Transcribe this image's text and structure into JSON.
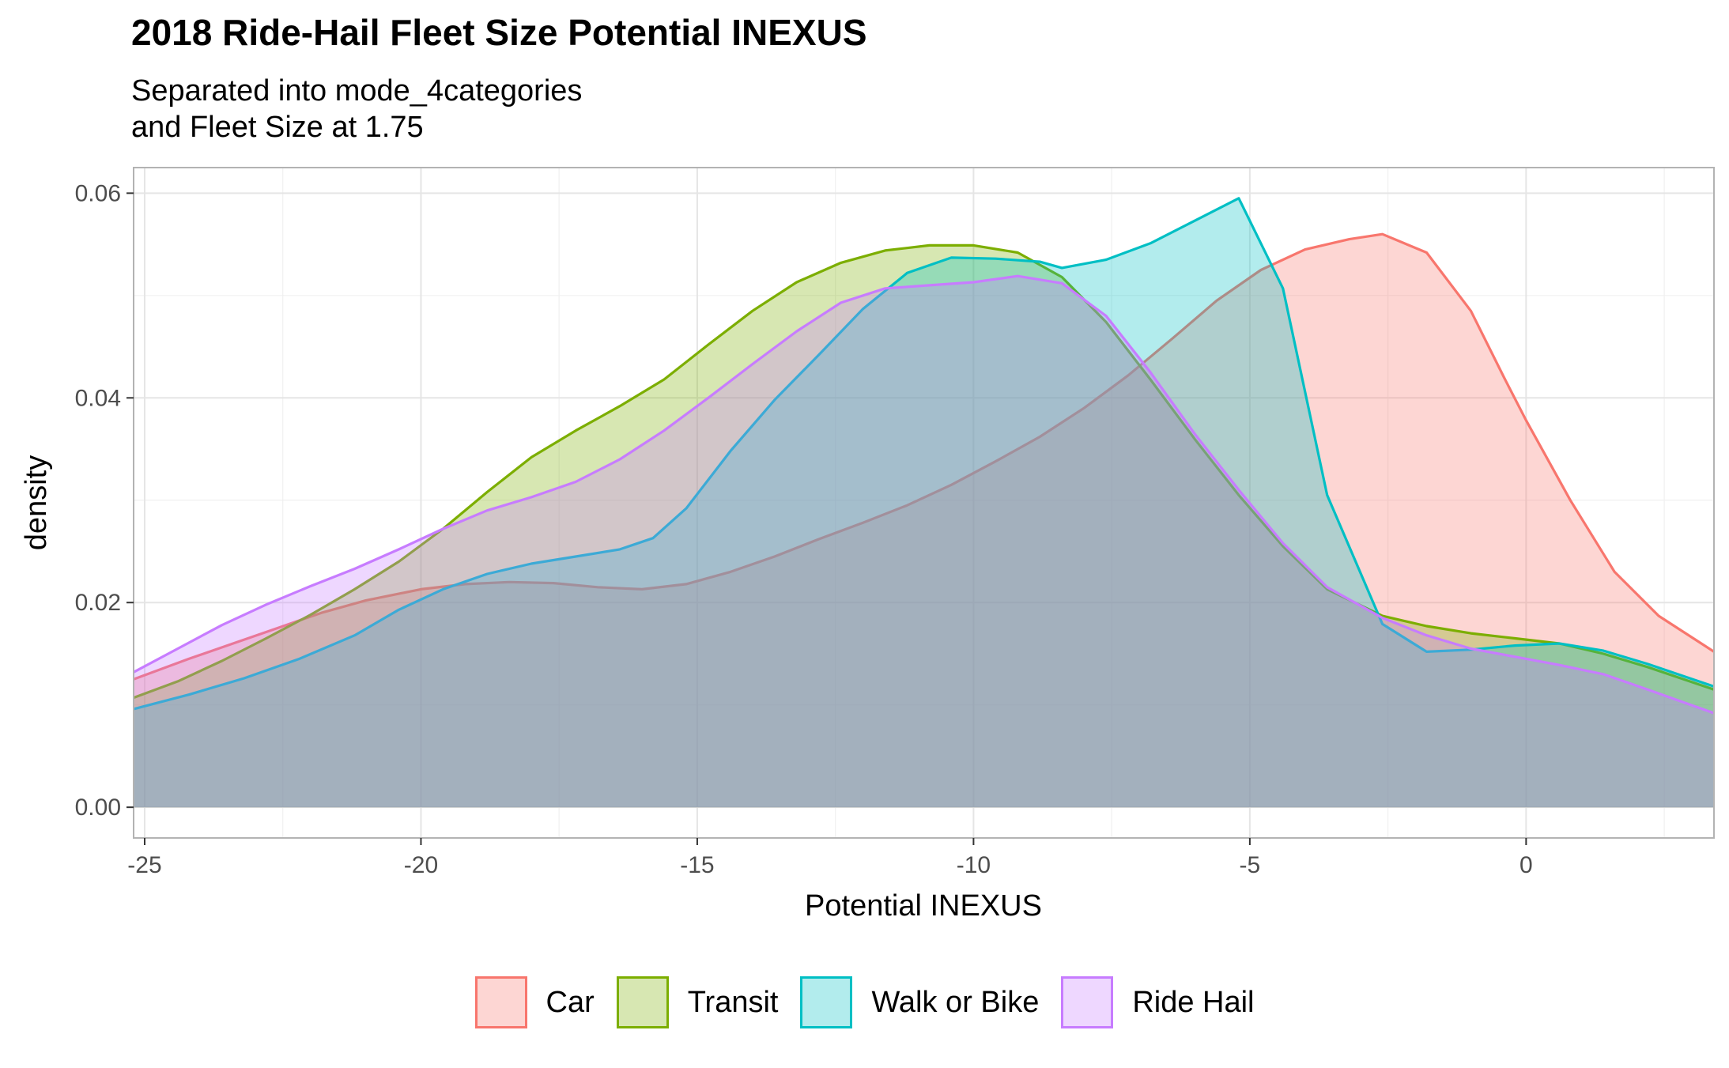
{
  "chart_data": {
    "type": "area",
    "title": "2018 Ride-Hail Fleet Size Potential INEXUS",
    "subtitle": "Separated into mode_4categories\nand Fleet Size at 1.75",
    "xlabel": "Potential INEXUS",
    "ylabel": "density",
    "xlim": [
      -25.2,
      3.4
    ],
    "ylim": [
      -0.003,
      0.0625
    ],
    "x_ticks": [
      -25,
      -20,
      -15,
      -10,
      -5,
      0
    ],
    "x_tick_labels": [
      "-25",
      "-20",
      "-15",
      "-10",
      "-5",
      "0"
    ],
    "y_ticks": [
      0.0,
      0.02,
      0.04,
      0.06
    ],
    "y_tick_labels": [
      "0.00",
      "0.02",
      "0.04",
      "0.06"
    ],
    "grid": true,
    "legend_position": "bottom",
    "series": [
      {
        "name": "Car",
        "color": "#F8766D",
        "points": [
          [
            -25.2,
            0.0125
          ],
          [
            -24.2,
            0.0145
          ],
          [
            -23.4,
            0.016
          ],
          [
            -22.6,
            0.0175
          ],
          [
            -21.8,
            0.019
          ],
          [
            -21.0,
            0.0202
          ],
          [
            -20.0,
            0.0213
          ],
          [
            -19.2,
            0.0218
          ],
          [
            -18.4,
            0.022
          ],
          [
            -17.6,
            0.0219
          ],
          [
            -16.8,
            0.0215
          ],
          [
            -16.0,
            0.0213
          ],
          [
            -15.2,
            0.0218
          ],
          [
            -14.4,
            0.023
          ],
          [
            -13.6,
            0.0245
          ],
          [
            -12.8,
            0.0262
          ],
          [
            -12.0,
            0.0278
          ],
          [
            -11.2,
            0.0295
          ],
          [
            -10.4,
            0.0315
          ],
          [
            -9.6,
            0.0338
          ],
          [
            -8.8,
            0.0362
          ],
          [
            -8.0,
            0.039
          ],
          [
            -7.2,
            0.0422
          ],
          [
            -6.4,
            0.0458
          ],
          [
            -5.6,
            0.0495
          ],
          [
            -4.8,
            0.0525
          ],
          [
            -4.0,
            0.0545
          ],
          [
            -3.2,
            0.0555
          ],
          [
            -2.6,
            0.056
          ],
          [
            -1.8,
            0.0542
          ],
          [
            -1.0,
            0.0485
          ],
          [
            -0.4,
            0.042
          ],
          [
            0.0,
            0.0378
          ],
          [
            0.8,
            0.03
          ],
          [
            1.6,
            0.023
          ],
          [
            2.4,
            0.0187
          ],
          [
            3.4,
            0.0152
          ]
        ]
      },
      {
        "name": "Transit",
        "color": "#7CAE00",
        "points": [
          [
            -25.2,
            0.0107
          ],
          [
            -24.4,
            0.0123
          ],
          [
            -23.6,
            0.0143
          ],
          [
            -22.8,
            0.0165
          ],
          [
            -22.0,
            0.0188
          ],
          [
            -21.2,
            0.0213
          ],
          [
            -20.4,
            0.024
          ],
          [
            -19.6,
            0.0272
          ],
          [
            -18.8,
            0.0308
          ],
          [
            -18.0,
            0.0342
          ],
          [
            -17.2,
            0.0368
          ],
          [
            -16.4,
            0.0392
          ],
          [
            -15.6,
            0.0418
          ],
          [
            -14.8,
            0.0452
          ],
          [
            -14.0,
            0.0485
          ],
          [
            -13.2,
            0.0513
          ],
          [
            -12.4,
            0.0532
          ],
          [
            -11.6,
            0.0544
          ],
          [
            -10.8,
            0.0549
          ],
          [
            -10.0,
            0.0549
          ],
          [
            -9.2,
            0.0542
          ],
          [
            -8.4,
            0.0518
          ],
          [
            -7.6,
            0.0474
          ],
          [
            -6.8,
            0.0418
          ],
          [
            -6.0,
            0.036
          ],
          [
            -5.2,
            0.0305
          ],
          [
            -4.4,
            0.0255
          ],
          [
            -3.6,
            0.0213
          ],
          [
            -2.6,
            0.0187
          ],
          [
            -1.8,
            0.0177
          ],
          [
            -1.0,
            0.017
          ],
          [
            -0.2,
            0.0165
          ],
          [
            0.6,
            0.016
          ],
          [
            1.4,
            0.015
          ],
          [
            2.2,
            0.0137
          ],
          [
            3.4,
            0.0115
          ]
        ]
      },
      {
        "name": "Walk or Bike",
        "color": "#00BFC4",
        "points": [
          [
            -25.2,
            0.0096
          ],
          [
            -24.2,
            0.011
          ],
          [
            -23.2,
            0.0126
          ],
          [
            -22.2,
            0.0145
          ],
          [
            -21.2,
            0.0168
          ],
          [
            -20.4,
            0.0193
          ],
          [
            -19.6,
            0.0213
          ],
          [
            -18.8,
            0.0228
          ],
          [
            -18.0,
            0.0238
          ],
          [
            -17.2,
            0.0245
          ],
          [
            -16.4,
            0.0252
          ],
          [
            -15.8,
            0.0263
          ],
          [
            -15.2,
            0.0292
          ],
          [
            -14.4,
            0.0348
          ],
          [
            -13.6,
            0.0398
          ],
          [
            -12.8,
            0.0442
          ],
          [
            -12.0,
            0.0487
          ],
          [
            -11.2,
            0.0522
          ],
          [
            -10.4,
            0.0537
          ],
          [
            -9.6,
            0.0536
          ],
          [
            -8.8,
            0.0533
          ],
          [
            -8.4,
            0.0527
          ],
          [
            -7.6,
            0.0535
          ],
          [
            -6.8,
            0.0551
          ],
          [
            -6.0,
            0.0573
          ],
          [
            -5.2,
            0.0595
          ],
          [
            -4.4,
            0.0507
          ],
          [
            -3.6,
            0.0305
          ],
          [
            -2.6,
            0.0179
          ],
          [
            -1.8,
            0.0152
          ],
          [
            -1.0,
            0.0154
          ],
          [
            -0.2,
            0.0158
          ],
          [
            0.6,
            0.016
          ],
          [
            1.4,
            0.0153
          ],
          [
            2.2,
            0.014
          ],
          [
            3.4,
            0.0118
          ]
        ]
      },
      {
        "name": "Ride Hail",
        "color": "#C77CFF",
        "points": [
          [
            -25.2,
            0.0132
          ],
          [
            -24.4,
            0.0155
          ],
          [
            -23.6,
            0.0178
          ],
          [
            -22.8,
            0.0198
          ],
          [
            -22.0,
            0.0216
          ],
          [
            -21.2,
            0.0233
          ],
          [
            -20.4,
            0.0252
          ],
          [
            -19.6,
            0.0272
          ],
          [
            -18.8,
            0.029
          ],
          [
            -18.0,
            0.0303
          ],
          [
            -17.2,
            0.0318
          ],
          [
            -16.4,
            0.034
          ],
          [
            -15.6,
            0.0368
          ],
          [
            -14.8,
            0.04
          ],
          [
            -14.0,
            0.0433
          ],
          [
            -13.2,
            0.0465
          ],
          [
            -12.4,
            0.0493
          ],
          [
            -11.6,
            0.0507
          ],
          [
            -10.8,
            0.051
          ],
          [
            -10.0,
            0.0513
          ],
          [
            -9.2,
            0.0519
          ],
          [
            -8.4,
            0.0512
          ],
          [
            -7.6,
            0.048
          ],
          [
            -6.8,
            0.0425
          ],
          [
            -6.0,
            0.0365
          ],
          [
            -5.2,
            0.031
          ],
          [
            -4.4,
            0.0258
          ],
          [
            -3.6,
            0.0215
          ],
          [
            -2.6,
            0.0185
          ],
          [
            -1.8,
            0.0168
          ],
          [
            -1.0,
            0.0155
          ],
          [
            -0.2,
            0.0147
          ],
          [
            0.6,
            0.0139
          ],
          [
            1.4,
            0.013
          ],
          [
            2.2,
            0.0115
          ],
          [
            3.4,
            0.0092
          ]
        ]
      }
    ]
  }
}
